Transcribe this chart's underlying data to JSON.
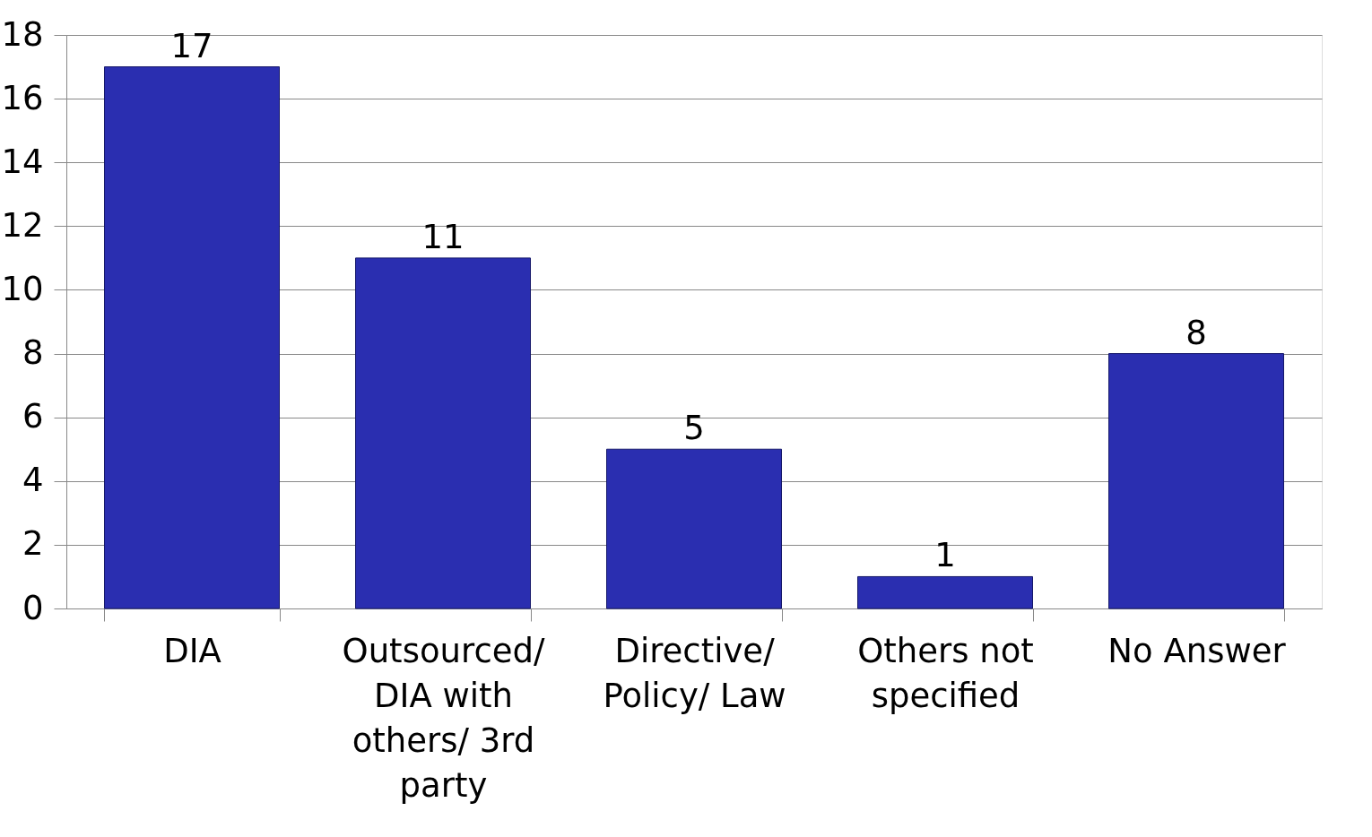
{
  "chart_data": {
    "type": "bar",
    "categories": [
      "DIA",
      "Outsourced/ DIA with others/ 3rd party",
      "Directive/ Policy/ Law",
      "Others not specified",
      "No Answer"
    ],
    "values": [
      17,
      11,
      5,
      1,
      8
    ],
    "color": "#2a2eb0",
    "ylim": [
      0,
      18
    ],
    "yticks": [
      0,
      2,
      4,
      6,
      8,
      10,
      12,
      14,
      16,
      18
    ],
    "grid": "y",
    "data_labels": true
  }
}
